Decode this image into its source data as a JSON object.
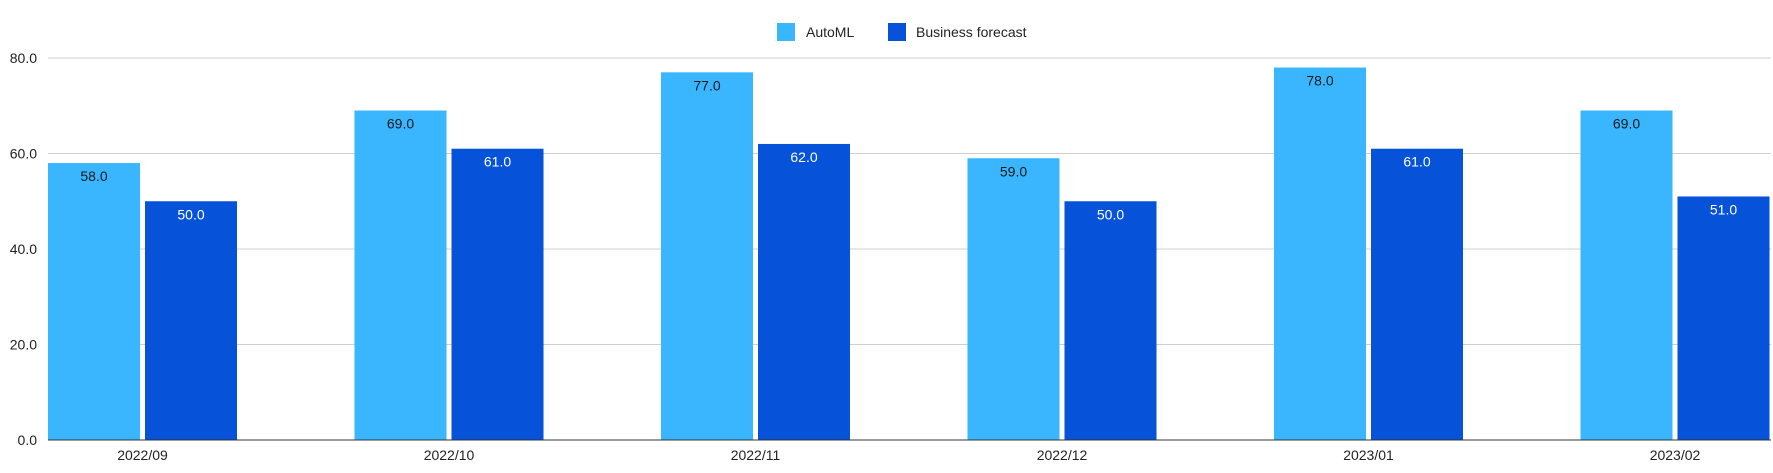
{
  "chart_data": {
    "type": "bar",
    "title": "",
    "xlabel": "",
    "ylabel": "",
    "categories": [
      "2022/09",
      "2022/10",
      "2022/11",
      "2022/12",
      "2023/01",
      "2023/02"
    ],
    "series": [
      {
        "name": "AutoML",
        "color": "#39b6ff",
        "label_color": "#1a1a1a",
        "values": [
          58.0,
          69.0,
          77.0,
          59.0,
          78.0,
          69.0
        ],
        "labels": [
          "58.0",
          "69.0",
          "77.0",
          "59.0",
          "78.0",
          "69.0"
        ]
      },
      {
        "name": "Business forecast",
        "color": "#0652d9",
        "label_color": "#ffffff",
        "values": [
          50.0,
          61.0,
          62.0,
          50.0,
          61.0,
          51.0
        ],
        "labels": [
          "50.0",
          "61.0",
          "62.0",
          "50.0",
          "61.0",
          "51.0"
        ]
      }
    ],
    "ylim": [
      0,
      80
    ],
    "yticks": [
      0,
      20,
      40,
      60,
      80
    ],
    "ytick_labels": [
      "0.0",
      "20.0",
      "40.0",
      "60.0",
      "80.0"
    ],
    "grid": true,
    "legend_position": "top-center",
    "data_labels": "inside-top"
  }
}
